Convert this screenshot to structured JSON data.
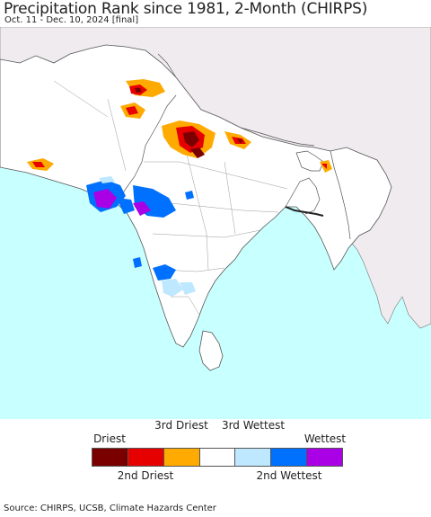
{
  "title": "Precipitation Rank since 1981, 2-Month (CHIRPS)",
  "subtitle": "Oct. 11 - Dec. 10, 2024 [final]",
  "legend": {
    "top_labels": [
      "Driest",
      "3rd Driest",
      "3rd Wettest",
      "Wettest"
    ],
    "bottom_labels": [
      "2nd Driest",
      "2nd Wettest"
    ],
    "categories": [
      {
        "rank": "Driest",
        "color": "#7a0000"
      },
      {
        "rank": "2nd Driest",
        "color": "#e60000"
      },
      {
        "rank": "3rd Driest",
        "color": "#ffaa00"
      },
      {
        "rank": "Normal",
        "color": "#ffffff"
      },
      {
        "rank": "3rd Wettest",
        "color": "#bee8ff"
      },
      {
        "rank": "2nd Wettest",
        "color": "#0070ff"
      },
      {
        "rank": "Wettest",
        "color": "#a900e6"
      }
    ]
  },
  "colors": {
    "ocean": "#c8ffff",
    "outside_land": "#efebef",
    "region_land": "#ffffff",
    "border": "#555555"
  },
  "source": "Source: CHIRPS, UCSB, Climate Hazards Center"
}
